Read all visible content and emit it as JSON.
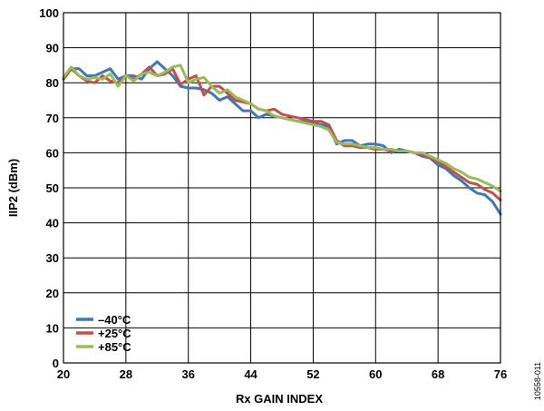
{
  "chart_data": {
    "type": "line",
    "xlabel": "Rx GAIN INDEX",
    "ylabel": "IIP2 (dBm)",
    "xlim": [
      20,
      76
    ],
    "ylim": [
      0,
      100
    ],
    "xticks": [
      20,
      28,
      36,
      44,
      52,
      60,
      68,
      76
    ],
    "yticks": [
      0,
      10,
      20,
      30,
      40,
      50,
      60,
      70,
      80,
      90,
      100
    ],
    "grid": true,
    "legend_position": "bottom-left",
    "figure_id": "10558-011",
    "x": [
      20,
      21,
      22,
      23,
      24,
      25,
      26,
      27,
      28,
      29,
      30,
      31,
      32,
      33,
      34,
      35,
      36,
      37,
      38,
      39,
      40,
      41,
      42,
      43,
      44,
      45,
      46,
      47,
      48,
      49,
      50,
      51,
      52,
      53,
      54,
      55,
      56,
      57,
      58,
      59,
      60,
      61,
      62,
      63,
      64,
      65,
      66,
      67,
      68,
      69,
      70,
      71,
      72,
      73,
      74,
      75,
      76
    ],
    "series": [
      {
        "name": "–40°C",
        "color": "#3f78b4",
        "values": [
          81,
          84,
          84,
          82,
          82,
          83,
          84,
          81,
          82,
          82,
          81,
          84,
          86,
          84,
          82,
          79,
          78.5,
          78.5,
          78,
          77,
          75,
          76,
          74,
          72,
          72,
          70,
          71,
          70.5,
          70,
          69.5,
          69,
          69,
          68.5,
          68,
          67.5,
          62.5,
          63.5,
          63.5,
          62,
          62.5,
          62.5,
          62,
          60,
          61,
          60.5,
          60,
          59,
          58.5,
          56.5,
          55.5,
          53.5,
          52,
          50,
          48.5,
          48,
          46,
          42.5
        ]
      },
      {
        "name": "+25°C",
        "color": "#c0504d",
        "values": [
          81,
          84,
          82,
          80.5,
          80,
          82,
          80.5,
          80,
          82,
          81,
          82.5,
          84.5,
          82,
          82.5,
          84,
          79.5,
          81,
          82,
          76.5,
          79,
          79,
          77,
          75,
          74.5,
          74,
          72.5,
          72,
          72.5,
          71,
          70.5,
          70,
          69.5,
          69,
          69,
          68,
          63.5,
          62,
          62,
          61.5,
          61.5,
          61,
          61,
          60.5,
          60.5,
          60.5,
          60,
          59.5,
          58.5,
          57.5,
          56,
          54.5,
          53,
          51.5,
          51,
          49.5,
          48.5,
          46.5
        ]
      },
      {
        "name": "+85°C",
        "color": "#9bbb59",
        "values": [
          81.5,
          84.5,
          82,
          81,
          81.5,
          81,
          82.5,
          79,
          82,
          80.5,
          82.5,
          83,
          82,
          83,
          84.5,
          85,
          80,
          81,
          81.5,
          79,
          77,
          78,
          76,
          75,
          74,
          72.5,
          72,
          70.5,
          70,
          69.5,
          69,
          68.5,
          68,
          67.5,
          66.5,
          63,
          62.5,
          62.5,
          62,
          61.5,
          61.5,
          61,
          61,
          60.5,
          60.5,
          60,
          60,
          59,
          58,
          57,
          55.5,
          54.5,
          53,
          52.5,
          51.5,
          50.5,
          49
        ]
      }
    ]
  }
}
